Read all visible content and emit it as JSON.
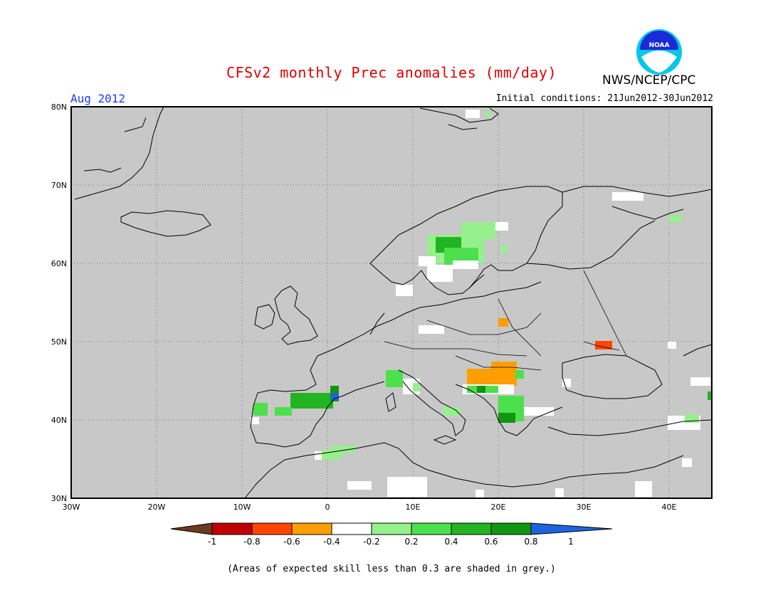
{
  "header": {
    "title": "CFSv2 monthly Prec anomalies (mm/day)",
    "org": "NWS/NCEP/CPC",
    "logo_text": "NOAA",
    "month": "Aug 2012",
    "initial_conditions": "Initial conditions: 21Jun2012-30Jun2012"
  },
  "map": {
    "lat_ticks": [
      "80N",
      "70N",
      "60N",
      "50N",
      "40N",
      "30N"
    ],
    "lon_ticks": [
      "30W",
      "20W",
      "10W",
      "0",
      "10E",
      "20E",
      "30E",
      "40E"
    ],
    "background_color": "#c8c8c8"
  },
  "colorbar": {
    "labels": [
      "-1",
      "-0.8",
      "-0.6",
      "-0.4",
      "-0.2",
      "0.2",
      "0.4",
      "0.6",
      "0.8",
      "1"
    ],
    "colors": [
      "#6b3a1f",
      "#c00000",
      "#ff4500",
      "#ff9e00",
      "#ffffff",
      "#96f08c",
      "#4ce04c",
      "#22b422",
      "#109610",
      "#1f64dc"
    ]
  },
  "footnote": "(Areas of expected skill less than 0.3 are shaded in grey.)"
}
